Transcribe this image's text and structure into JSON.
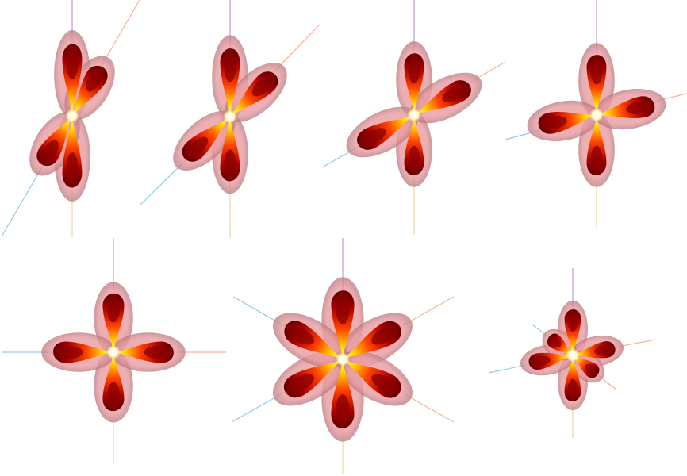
{
  "colors": {
    "background": "#ffffff",
    "axis_vertical_top": "#b88ac8",
    "axis_vertical_bottom": "#e8d48a",
    "axis_diag_upper": "#f0a888",
    "axis_diag_lower": "#88c0e0",
    "glow": "#e8a2a8",
    "lobe_outer": "#ffd400",
    "lobe_mid": "#ff2a00",
    "lobe_core": "#8a0000",
    "hub": "#fffde0"
  },
  "figures": [
    {
      "id": "fig-1",
      "name": "two-axis-lobes-steep",
      "lobe_count": 4
    },
    {
      "id": "fig-2",
      "name": "two-axis-lobes-tilted",
      "lobe_count": 4
    },
    {
      "id": "fig-3",
      "name": "two-axis-lobes-shallow",
      "lobe_count": 4
    },
    {
      "id": "fig-4",
      "name": "two-axis-lobes-near-horizontal",
      "lobe_count": 4
    },
    {
      "id": "fig-5",
      "name": "four-lobe-cross",
      "lobe_count": 4
    },
    {
      "id": "fig-6",
      "name": "six-lobe-star",
      "lobe_count": 6
    },
    {
      "id": "fig-7",
      "name": "six-lobe-small-star",
      "lobe_count": 6
    }
  ]
}
